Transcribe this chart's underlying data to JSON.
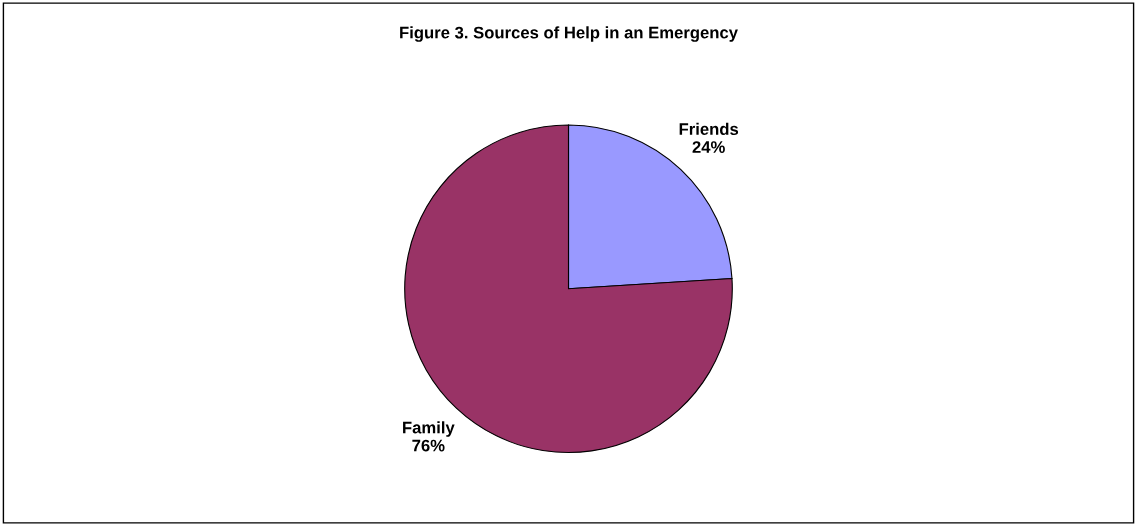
{
  "chart_data": {
    "type": "pie",
    "title": "Figure 3. Sources of Help in an Emergency",
    "categories": [
      "Friends",
      "Family"
    ],
    "values": [
      24,
      76
    ],
    "colors": [
      "#9999ff",
      "#993366"
    ],
    "value_labels": [
      "24%",
      "76%"
    ],
    "legend": false
  }
}
